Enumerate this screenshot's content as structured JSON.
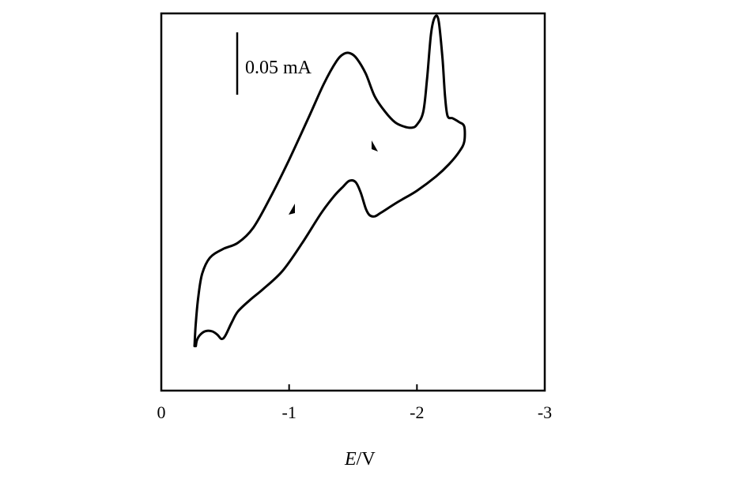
{
  "chart_data": {
    "type": "line",
    "title": "",
    "xlabel_italic": "E",
    "xlabel_unit": "/V",
    "ylabel": "",
    "xlim": [
      0,
      -3
    ],
    "x_ticks": [
      0,
      -1,
      -2,
      -3
    ],
    "x_tick_labels": [
      "0",
      "-1",
      "-2",
      "-3"
    ],
    "y_scale_bar": {
      "value": 0.05,
      "label": "0.05 mA"
    },
    "line_color": "#000000",
    "grid": false,
    "legend": "none",
    "series": [
      {
        "points": [
          [
            -0.26,
            0.118
          ],
          [
            -0.27,
            0.18
          ],
          [
            -0.29,
            0.25
          ],
          [
            -0.32,
            0.31
          ],
          [
            -0.38,
            0.352
          ],
          [
            -0.48,
            0.375
          ],
          [
            -0.6,
            0.392
          ],
          [
            -0.72,
            0.432
          ],
          [
            -0.85,
            0.51
          ],
          [
            -1.0,
            0.612
          ],
          [
            -1.15,
            0.722
          ],
          [
            -1.27,
            0.812
          ],
          [
            -1.37,
            0.873
          ],
          [
            -1.43,
            0.893
          ],
          [
            -1.48,
            0.894
          ],
          [
            -1.53,
            0.88
          ],
          [
            -1.6,
            0.84
          ],
          [
            -1.67,
            0.78
          ],
          [
            -1.75,
            0.74
          ],
          [
            -1.83,
            0.711
          ],
          [
            -1.9,
            0.7
          ],
          [
            -1.96,
            0.697
          ],
          [
            -2.0,
            0.705
          ],
          [
            -2.05,
            0.74
          ],
          [
            -2.08,
            0.83
          ],
          [
            -2.11,
            0.945
          ],
          [
            -2.14,
            0.99
          ],
          [
            -2.17,
            0.98
          ],
          [
            -2.2,
            0.88
          ],
          [
            -2.22,
            0.78
          ],
          [
            -2.24,
            0.728
          ],
          [
            -2.28,
            0.722
          ],
          [
            -2.33,
            0.712
          ],
          [
            -2.37,
            0.7
          ],
          [
            -2.37,
            0.66
          ],
          [
            -2.33,
            0.633
          ],
          [
            -2.25,
            0.6
          ],
          [
            -2.15,
            0.568
          ],
          [
            -2.0,
            0.53
          ],
          [
            -1.85,
            0.5
          ],
          [
            -1.72,
            0.472
          ],
          [
            -1.67,
            0.462
          ],
          [
            -1.63,
            0.465
          ],
          [
            -1.6,
            0.482
          ],
          [
            -1.56,
            0.525
          ],
          [
            -1.52,
            0.553
          ],
          [
            -1.47,
            0.556
          ],
          [
            -1.42,
            0.54
          ],
          [
            -1.35,
            0.515
          ],
          [
            -1.25,
            0.47
          ],
          [
            -1.1,
            0.39
          ],
          [
            -0.95,
            0.318
          ],
          [
            -0.8,
            0.27
          ],
          [
            -0.7,
            0.242
          ],
          [
            -0.6,
            0.21
          ],
          [
            -0.55,
            0.18
          ],
          [
            -0.5,
            0.145
          ],
          [
            -0.47,
            0.137
          ],
          [
            -0.44,
            0.148
          ],
          [
            -0.4,
            0.157
          ],
          [
            -0.35,
            0.158
          ],
          [
            -0.31,
            0.15
          ],
          [
            -0.28,
            0.135
          ],
          [
            -0.27,
            0.118
          ]
        ]
      }
    ]
  }
}
